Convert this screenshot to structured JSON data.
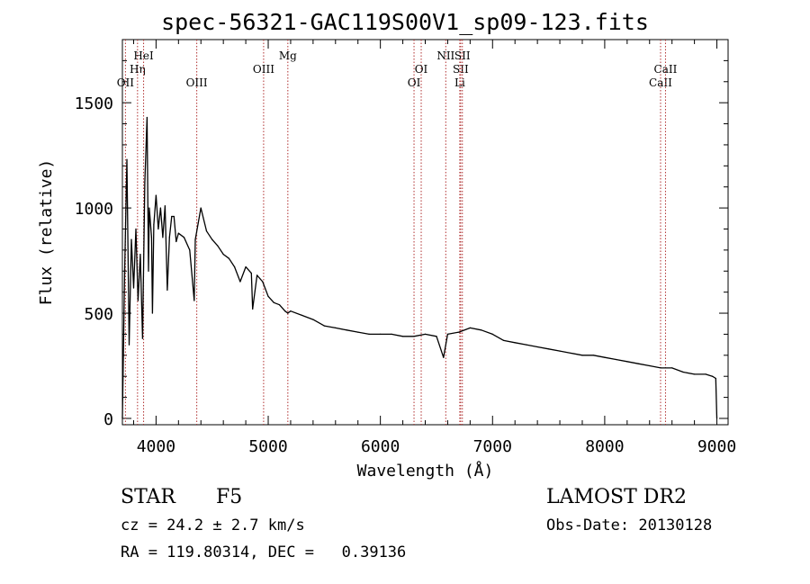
{
  "chart_data": {
    "type": "line",
    "title": "spec-56321-GAC119S00V1_sp09-123.fits",
    "xlabel": "Wavelength (Å)",
    "ylabel": "Flux (relative)",
    "xlim": [
      3700,
      9100
    ],
    "ylim": [
      -30,
      1800
    ],
    "x_ticks": [
      4000,
      5000,
      6000,
      7000,
      8000,
      9000
    ],
    "x_tick_labels": [
      "4000",
      "5000",
      "6000",
      "7000",
      "8000",
      "9000"
    ],
    "y_ticks": [
      0,
      500,
      1000,
      1500
    ],
    "y_tick_labels": [
      "0",
      "500",
      "1000",
      "1500"
    ],
    "grid": false,
    "series": [
      {
        "x": [
          3700,
          3720,
          3740,
          3760,
          3780,
          3800,
          3820,
          3840,
          3860,
          3880,
          3900,
          3920,
          3933,
          3940,
          3960,
          3968,
          3980,
          4000,
          4020,
          4040,
          4060,
          4080,
          4100,
          4120,
          4140,
          4160,
          4180,
          4200,
          4250,
          4300,
          4340,
          4350,
          4400,
          4450,
          4500,
          4550,
          4600,
          4650,
          4700,
          4750,
          4800,
          4850,
          4861,
          4900,
          4950,
          5000,
          5050,
          5100,
          5150,
          5175,
          5200,
          5300,
          5400,
          5500,
          5600,
          5700,
          5800,
          5900,
          6000,
          6100,
          6200,
          6300,
          6400,
          6500,
          6563,
          6600,
          6700,
          6800,
          6900,
          7000,
          7100,
          7200,
          7300,
          7400,
          7500,
          7600,
          7700,
          7800,
          7900,
          8000,
          8100,
          8200,
          8300,
          8400,
          8500,
          8600,
          8700,
          8800,
          8900,
          8960,
          8990,
          9000
        ],
        "y": [
          0,
          700,
          1230,
          350,
          850,
          620,
          900,
          560,
          780,
          380,
          1120,
          1430,
          700,
          1000,
          860,
          500,
          920,
          1060,
          900,
          1000,
          860,
          1010,
          610,
          860,
          960,
          960,
          840,
          880,
          860,
          800,
          560,
          850,
          1000,
          890,
          850,
          820,
          780,
          760,
          720,
          650,
          720,
          690,
          520,
          680,
          650,
          580,
          550,
          540,
          510,
          500,
          510,
          490,
          470,
          440,
          430,
          420,
          410,
          400,
          400,
          400,
          390,
          390,
          400,
          390,
          290,
          400,
          410,
          430,
          420,
          400,
          370,
          360,
          350,
          340,
          330,
          320,
          310,
          300,
          300,
          290,
          280,
          270,
          260,
          250,
          240,
          240,
          220,
          210,
          210,
          200,
          190,
          0
        ]
      }
    ],
    "line_markers": [
      {
        "label": "OII",
        "x": 3727
      },
      {
        "label": "Hη",
        "x": 3835
      },
      {
        "label": "HeI",
        "x": 3889
      },
      {
        "label": "OIII",
        "x": 4363
      },
      {
        "label": "OIII",
        "x": 4959
      },
      {
        "label": "Mg",
        "x": 5175
      },
      {
        "label": "OI",
        "x": 6300
      },
      {
        "label": "OI",
        "x": 6364
      },
      {
        "label": "NII",
        "x": 6583
      },
      {
        "label": "SII",
        "x": 6716
      },
      {
        "label": "Li",
        "x": 6708
      },
      {
        "label": "SII",
        "x": 6731
      },
      {
        "label": "CaII",
        "x": 8498
      },
      {
        "label": "CaII",
        "x": 8542
      }
    ]
  },
  "info": {
    "object_type": "STAR",
    "subclass": "F5",
    "survey": "LAMOST DR2",
    "redshift": "cz = 24.2 ± 2.7 km/s",
    "obs_date": "Obs-Date: 20130128",
    "coords": "RA = 119.80314, DEC =   0.39136"
  },
  "colors": {
    "spectrum": "#000000",
    "marker_lines": "#b03030",
    "axes": "#000000"
  }
}
